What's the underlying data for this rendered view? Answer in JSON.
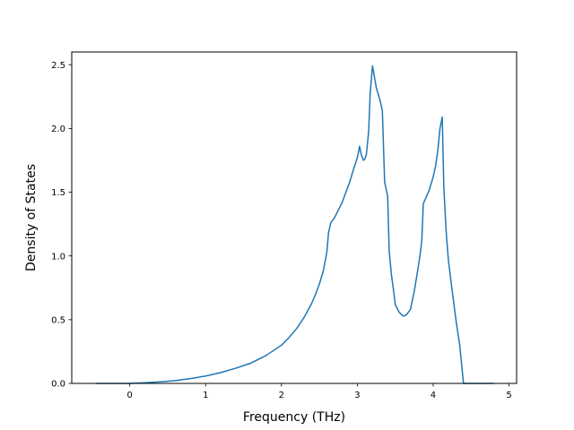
{
  "chart_data": {
    "type": "line",
    "xlabel": "Frequency (THz)",
    "ylabel": "Density of States",
    "xlim": [
      -0.765,
      5.1
    ],
    "ylim": [
      0,
      2.6
    ],
    "x_ticks": [
      0,
      1,
      2,
      3,
      4,
      5
    ],
    "y_ticks": [
      0.0,
      0.5,
      1.0,
      1.5,
      2.0,
      2.5
    ],
    "x_tick_labels": [
      "0",
      "1",
      "2",
      "3",
      "4",
      "5"
    ],
    "y_tick_labels": [
      "0.0",
      "0.5",
      "1.0",
      "1.5",
      "2.0",
      "2.5"
    ],
    "grid": false,
    "line_color": "#1f77b4",
    "series": [
      {
        "x": [
          -0.45,
          0.0,
          0.2,
          0.4,
          0.6,
          0.8,
          1.0,
          1.2,
          1.4,
          1.6,
          1.8,
          2.0,
          2.1,
          2.2,
          2.3,
          2.4,
          2.45,
          2.5,
          2.55,
          2.58,
          2.6,
          2.62,
          2.65,
          2.7,
          2.75,
          2.8,
          2.85,
          2.9,
          2.95,
          3.0,
          3.03,
          3.05,
          3.08,
          3.1,
          3.12,
          3.15,
          3.17,
          3.2,
          3.25,
          3.3,
          3.33,
          3.36,
          3.4,
          3.42,
          3.45,
          3.48,
          3.5,
          3.55,
          3.6,
          3.62,
          3.65,
          3.7,
          3.75,
          3.8,
          3.83,
          3.85,
          3.87,
          3.9,
          3.95,
          4.0,
          4.03,
          4.06,
          4.09,
          4.12,
          4.14,
          4.17,
          4.2,
          4.25,
          4.3,
          4.35,
          4.4,
          4.5,
          4.6,
          4.7,
          4.8
        ],
        "y": [
          0.0,
          0.0,
          0.005,
          0.012,
          0.022,
          0.038,
          0.058,
          0.085,
          0.12,
          0.16,
          0.22,
          0.3,
          0.36,
          0.43,
          0.52,
          0.63,
          0.7,
          0.78,
          0.88,
          0.97,
          1.04,
          1.18,
          1.26,
          1.3,
          1.36,
          1.42,
          1.5,
          1.58,
          1.68,
          1.77,
          1.86,
          1.8,
          1.75,
          1.76,
          1.8,
          1.98,
          2.28,
          2.49,
          2.32,
          2.22,
          2.14,
          1.58,
          1.47,
          1.04,
          0.85,
          0.72,
          0.62,
          0.56,
          0.53,
          0.53,
          0.54,
          0.58,
          0.72,
          0.9,
          1.02,
          1.12,
          1.41,
          1.45,
          1.52,
          1.62,
          1.7,
          1.82,
          2.0,
          2.09,
          1.55,
          1.2,
          0.97,
          0.73,
          0.5,
          0.3,
          0.0,
          0.0,
          0.0,
          0.0,
          0.0
        ]
      }
    ]
  }
}
